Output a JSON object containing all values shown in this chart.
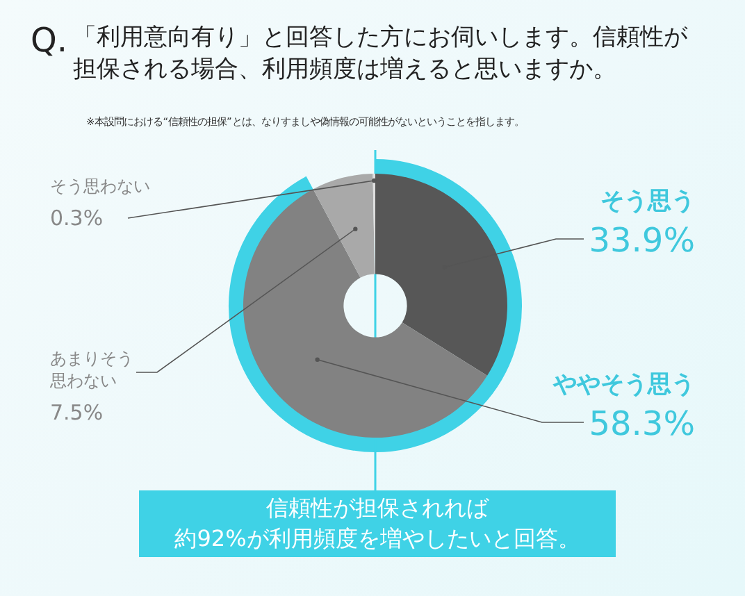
{
  "chart_data": {
    "type": "donut",
    "title": "Q.「利用意向有り」と回答した方にお伺いします。信頼性が担保される場合、利用頻度は増えると思いますか。",
    "subtitle": "※本設問における“信頼性の担保”とは、なりすましや偽情報の可能性がないということを指します。",
    "annotations": [
      "信頼性が担保されれば約92%が利用頻度を増やしたいと回答。"
    ],
    "categories": [
      "そう思う",
      "ややそう思う",
      "あまりそう思わない",
      "そう思わない"
    ],
    "values": [
      33.9,
      58.3,
      7.5,
      0.3
    ],
    "colors": [
      "#575757",
      "#828282",
      "#a9a9a9",
      "#dedede"
    ],
    "value_labels": [
      "33.9%",
      "58.3%",
      "7.5%",
      "0.3%"
    ],
    "legend": false
  }
}
